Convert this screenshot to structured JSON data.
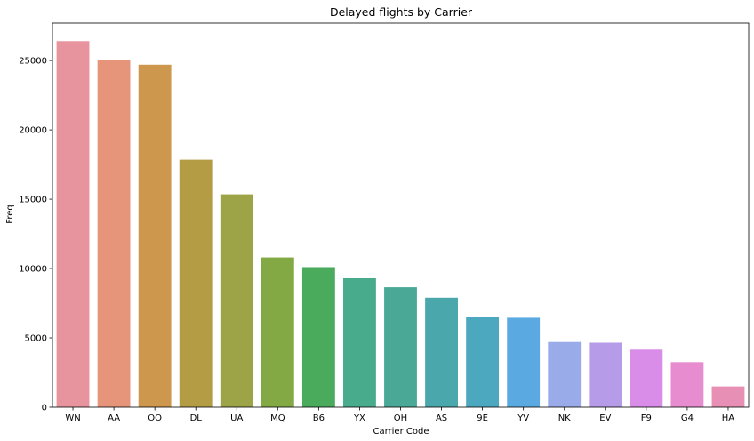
{
  "chart_data": {
    "type": "bar",
    "title": "Delayed flights by Carrier",
    "xlabel": "Carrier Code",
    "ylabel": "Freq",
    "categories": [
      "WN",
      "AA",
      "OO",
      "DL",
      "UA",
      "MQ",
      "B6",
      "YX",
      "OH",
      "AS",
      "9E",
      "YV",
      "NK",
      "EV",
      "F9",
      "G4",
      "HA"
    ],
    "values": [
      26400,
      25050,
      24700,
      17850,
      15350,
      10800,
      10100,
      9300,
      8650,
      7900,
      6500,
      6450,
      4700,
      4650,
      4150,
      3250,
      1500
    ],
    "ylim": [
      0,
      27700
    ],
    "yticks": [
      0,
      5000,
      10000,
      15000,
      20000,
      25000
    ],
    "grid": false,
    "colors": [
      "#e8949e",
      "#e6957b",
      "#cd974d",
      "#b49c45",
      "#9da347",
      "#83a944",
      "#4aab5c",
      "#48ac8c",
      "#4aa996",
      "#4aa7ac",
      "#4ba8be",
      "#5aa9e0",
      "#9aabe9",
      "#b69be8",
      "#da8ce9",
      "#e78ccf",
      "#e78fb4"
    ]
  }
}
